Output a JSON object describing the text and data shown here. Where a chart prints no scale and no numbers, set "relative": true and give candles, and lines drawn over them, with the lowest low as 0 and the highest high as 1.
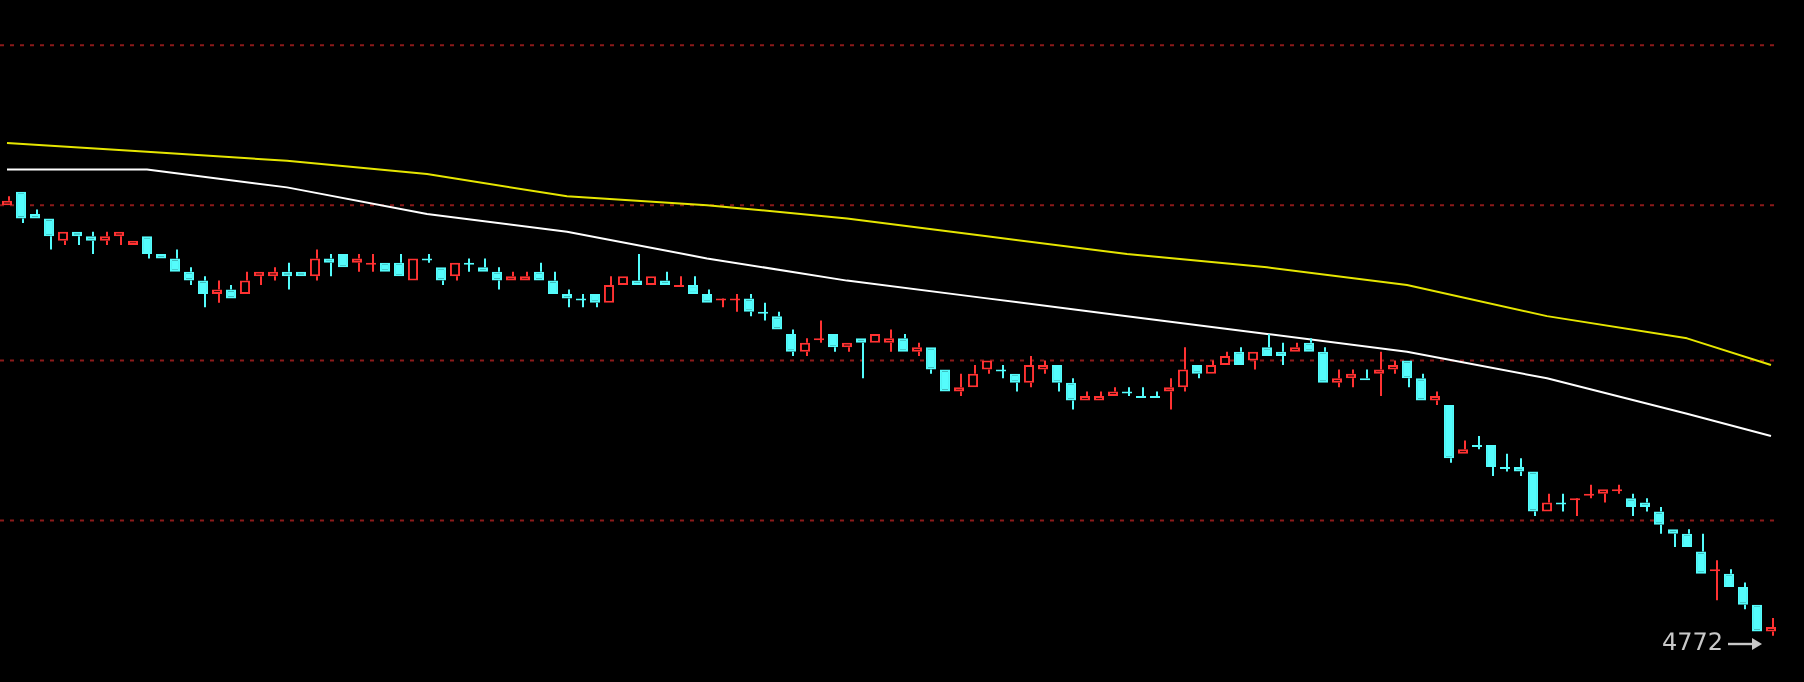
{
  "chart_data": {
    "type": "candlestick",
    "relative": true,
    "legend": false,
    "tick_labels": false,
    "categories": [
      null,
      null,
      null,
      null,
      null,
      null,
      null,
      null,
      null,
      null,
      null,
      null,
      null,
      null,
      null,
      null,
      null,
      null,
      null,
      null,
      null,
      null,
      null,
      null,
      null,
      null,
      null,
      null,
      null,
      null,
      null,
      null,
      null,
      null,
      null,
      null,
      null,
      null,
      null,
      null,
      null,
      null,
      null,
      null,
      null,
      null,
      null,
      null,
      null,
      null,
      null,
      null,
      null,
      null,
      null,
      null,
      null,
      null,
      null,
      null,
      null,
      null,
      null,
      null,
      null,
      null,
      null,
      null,
      null,
      null,
      null,
      null,
      null,
      null,
      null,
      null,
      null,
      null,
      null,
      null,
      null,
      null,
      null,
      null,
      null,
      null,
      null,
      null,
      null,
      null,
      null,
      null,
      null,
      null,
      null,
      null,
      null,
      null,
      null,
      null,
      null,
      null,
      null,
      null,
      null,
      null,
      null,
      null,
      null,
      null,
      null,
      null,
      null,
      null,
      null,
      null,
      null,
      null,
      null,
      null,
      null,
      null,
      null,
      null,
      null,
      null,
      null
    ],
    "ohlc": [
      [
        0.97,
        0.99,
        0.97,
        0.98
      ],
      [
        1.0,
        1.0,
        0.93,
        0.94
      ],
      [
        0.95,
        0.96,
        0.94,
        0.94
      ],
      [
        0.94,
        0.94,
        0.87,
        0.9
      ],
      [
        0.89,
        0.91,
        0.88,
        0.91
      ],
      [
        0.91,
        0.91,
        0.88,
        0.9
      ],
      [
        0.9,
        0.91,
        0.86,
        0.89
      ],
      [
        0.89,
        0.91,
        0.88,
        0.9
      ],
      [
        0.9,
        0.91,
        0.88,
        0.91
      ],
      [
        0.88,
        0.89,
        0.88,
        0.89
      ],
      [
        0.9,
        0.9,
        0.85,
        0.86
      ],
      [
        0.86,
        0.86,
        0.85,
        0.85
      ],
      [
        0.85,
        0.87,
        0.82,
        0.82
      ],
      [
        0.82,
        0.83,
        0.79,
        0.8
      ],
      [
        0.8,
        0.81,
        0.74,
        0.77
      ],
      [
        0.77,
        0.8,
        0.75,
        0.78
      ],
      [
        0.78,
        0.79,
        0.76,
        0.76
      ],
      [
        0.77,
        0.82,
        0.77,
        0.8
      ],
      [
        0.81,
        0.82,
        0.79,
        0.82
      ],
      [
        0.81,
        0.83,
        0.8,
        0.82
      ],
      [
        0.82,
        0.84,
        0.78,
        0.81
      ],
      [
        0.82,
        0.82,
        0.81,
        0.81
      ],
      [
        0.81,
        0.87,
        0.8,
        0.85
      ],
      [
        0.85,
        0.86,
        0.81,
        0.84
      ],
      [
        0.86,
        0.86,
        0.83,
        0.83
      ],
      [
        0.84,
        0.86,
        0.82,
        0.85
      ],
      [
        0.84,
        0.86,
        0.82,
        0.84
      ],
      [
        0.84,
        0.84,
        0.82,
        0.82
      ],
      [
        0.84,
        0.86,
        0.81,
        0.81
      ],
      [
        0.8,
        0.85,
        0.8,
        0.85
      ],
      [
        0.85,
        0.86,
        0.84,
        0.85
      ],
      [
        0.83,
        0.83,
        0.79,
        0.8
      ],
      [
        0.81,
        0.84,
        0.8,
        0.84
      ],
      [
        0.84,
        0.85,
        0.82,
        0.84
      ],
      [
        0.83,
        0.85,
        0.82,
        0.82
      ],
      [
        0.82,
        0.83,
        0.78,
        0.8
      ],
      [
        0.8,
        0.82,
        0.8,
        0.81
      ],
      [
        0.8,
        0.82,
        0.8,
        0.81
      ],
      [
        0.82,
        0.84,
        0.8,
        0.8
      ],
      [
        0.8,
        0.82,
        0.77,
        0.77
      ],
      [
        0.77,
        0.78,
        0.74,
        0.76
      ],
      [
        0.76,
        0.77,
        0.74,
        0.76
      ],
      [
        0.77,
        0.77,
        0.74,
        0.75
      ],
      [
        0.75,
        0.81,
        0.75,
        0.79
      ],
      [
        0.79,
        0.81,
        0.79,
        0.81
      ],
      [
        0.8,
        0.86,
        0.79,
        0.79
      ],
      [
        0.79,
        0.81,
        0.79,
        0.81
      ],
      [
        0.8,
        0.82,
        0.79,
        0.79
      ],
      [
        0.79,
        0.81,
        0.79,
        0.79
      ],
      [
        0.79,
        0.81,
        0.77,
        0.77
      ],
      [
        0.77,
        0.78,
        0.75,
        0.75
      ],
      [
        0.76,
        0.76,
        0.74,
        0.76
      ],
      [
        0.76,
        0.77,
        0.73,
        0.76
      ],
      [
        0.76,
        0.77,
        0.72,
        0.73
      ],
      [
        0.73,
        0.75,
        0.71,
        0.73
      ],
      [
        0.72,
        0.73,
        0.69,
        0.69
      ],
      [
        0.68,
        0.69,
        0.63,
        0.64
      ],
      [
        0.64,
        0.67,
        0.63,
        0.66
      ],
      [
        0.67,
        0.71,
        0.66,
        0.67
      ],
      [
        0.68,
        0.68,
        0.64,
        0.65
      ],
      [
        0.65,
        0.66,
        0.64,
        0.66
      ],
      [
        0.67,
        0.67,
        0.58,
        0.66
      ],
      [
        0.66,
        0.68,
        0.66,
        0.68
      ],
      [
        0.66,
        0.69,
        0.64,
        0.67
      ],
      [
        0.67,
        0.68,
        0.64,
        0.64
      ],
      [
        0.64,
        0.66,
        0.63,
        0.65
      ],
      [
        0.65,
        0.65,
        0.59,
        0.6
      ],
      [
        0.6,
        0.6,
        0.55,
        0.55
      ],
      [
        0.55,
        0.59,
        0.54,
        0.56
      ],
      [
        0.56,
        0.61,
        0.56,
        0.59
      ],
      [
        0.6,
        0.62,
        0.59,
        0.62
      ],
      [
        0.6,
        0.61,
        0.58,
        0.6
      ],
      [
        0.59,
        0.59,
        0.55,
        0.57
      ],
      [
        0.57,
        0.63,
        0.56,
        0.61
      ],
      [
        0.6,
        0.62,
        0.59,
        0.61
      ],
      [
        0.61,
        0.61,
        0.55,
        0.57
      ],
      [
        0.57,
        0.58,
        0.51,
        0.53
      ],
      [
        0.53,
        0.55,
        0.53,
        0.54
      ],
      [
        0.53,
        0.55,
        0.53,
        0.54
      ],
      [
        0.54,
        0.56,
        0.54,
        0.55
      ],
      [
        0.55,
        0.56,
        0.54,
        0.55
      ],
      [
        0.54,
        0.56,
        0.54,
        0.54
      ],
      [
        0.54,
        0.55,
        0.54,
        0.54
      ],
      [
        0.55,
        0.58,
        0.51,
        0.56
      ],
      [
        0.56,
        0.65,
        0.55,
        0.6
      ],
      [
        0.61,
        0.61,
        0.58,
        0.59
      ],
      [
        0.59,
        0.62,
        0.59,
        0.61
      ],
      [
        0.61,
        0.64,
        0.61,
        0.63
      ],
      [
        0.64,
        0.65,
        0.61,
        0.61
      ],
      [
        0.62,
        0.64,
        0.6,
        0.64
      ],
      [
        0.65,
        0.68,
        0.63,
        0.63
      ],
      [
        0.64,
        0.66,
        0.61,
        0.63
      ],
      [
        0.64,
        0.66,
        0.64,
        0.65
      ],
      [
        0.66,
        0.67,
        0.64,
        0.64
      ],
      [
        0.64,
        0.65,
        0.57,
        0.57
      ],
      [
        0.57,
        0.6,
        0.56,
        0.58
      ],
      [
        0.58,
        0.6,
        0.56,
        0.59
      ],
      [
        0.58,
        0.6,
        0.58,
        0.58
      ],
      [
        0.59,
        0.64,
        0.54,
        0.6
      ],
      [
        0.6,
        0.62,
        0.59,
        0.61
      ],
      [
        0.62,
        0.62,
        0.56,
        0.58
      ],
      [
        0.58,
        0.59,
        0.53,
        0.53
      ],
      [
        0.53,
        0.55,
        0.52,
        0.54
      ],
      [
        0.52,
        0.52,
        0.39,
        0.4
      ],
      [
        0.41,
        0.44,
        0.41,
        0.42
      ],
      [
        0.43,
        0.45,
        0.42,
        0.43
      ],
      [
        0.43,
        0.43,
        0.36,
        0.38
      ],
      [
        0.38,
        0.41,
        0.37,
        0.38
      ],
      [
        0.38,
        0.4,
        0.36,
        0.37
      ],
      [
        0.37,
        0.37,
        0.27,
        0.28
      ],
      [
        0.28,
        0.32,
        0.28,
        0.3
      ],
      [
        0.3,
        0.32,
        0.28,
        0.3
      ],
      [
        0.31,
        0.31,
        0.27,
        0.31
      ],
      [
        0.32,
        0.34,
        0.31,
        0.32
      ],
      [
        0.32,
        0.33,
        0.3,
        0.33
      ],
      [
        0.33,
        0.34,
        0.32,
        0.33
      ],
      [
        0.31,
        0.32,
        0.27,
        0.29
      ],
      [
        0.3,
        0.31,
        0.28,
        0.29
      ],
      [
        0.28,
        0.29,
        0.23,
        0.25
      ],
      [
        0.24,
        0.24,
        0.2,
        0.23
      ],
      [
        0.23,
        0.24,
        0.2,
        0.2
      ],
      [
        0.19,
        0.23,
        0.14,
        0.14
      ],
      [
        0.15,
        0.17,
        0.08,
        0.15
      ],
      [
        0.14,
        0.15,
        0.11,
        0.11
      ],
      [
        0.11,
        0.12,
        0.06,
        0.07
      ],
      [
        0.07,
        0.07,
        0.01,
        0.01
      ],
      [
        0.01,
        0.04,
        0.0,
        0.02
      ]
    ],
    "colors": [
      "#ff3232",
      "#54fcfc",
      "#54fcfc",
      "#54fcfc",
      "#ff3232",
      "#54fcfc",
      "#54fcfc",
      "#ff3232",
      "#ff3232",
      "#ff3232",
      "#54fcfc",
      "#54fcfc",
      "#54fcfc",
      "#54fcfc",
      "#54fcfc",
      "#ff3232",
      "#54fcfc",
      "#ff3232",
      "#ff3232",
      "#ff3232",
      "#54fcfc",
      "#54fcfc",
      "#ff3232",
      "#54fcfc",
      "#54fcfc",
      "#ff3232",
      "#ff3232",
      "#54fcfc",
      "#54fcfc",
      "#ff3232",
      "#54fcfc",
      "#54fcfc",
      "#ff3232",
      "#54fcfc",
      "#54fcfc",
      "#54fcfc",
      "#ff3232",
      "#ff3232",
      "#54fcfc",
      "#54fcfc",
      "#54fcfc",
      "#54fcfc",
      "#54fcfc",
      "#ff3232",
      "#ff3232",
      "#54fcfc",
      "#ff3232",
      "#54fcfc",
      "#ff3232",
      "#54fcfc",
      "#54fcfc",
      "#ff3232",
      "#ff3232",
      "#54fcfc",
      "#54fcfc",
      "#54fcfc",
      "#54fcfc",
      "#ff3232",
      "#ff3232",
      "#54fcfc",
      "#ff3232",
      "#54fcfc",
      "#ff3232",
      "#ff3232",
      "#54fcfc",
      "#ff3232",
      "#54fcfc",
      "#54fcfc",
      "#ff3232",
      "#ff3232",
      "#ff3232",
      "#54fcfc",
      "#54fcfc",
      "#ff3232",
      "#ff3232",
      "#54fcfc",
      "#54fcfc",
      "#ff3232",
      "#ff3232",
      "#ff3232",
      "#54fcfc",
      "#54fcfc",
      "#54fcfc",
      "#ff3232",
      "#ff3232",
      "#54fcfc",
      "#ff3232",
      "#ff3232",
      "#54fcfc",
      "#ff3232",
      "#54fcfc",
      "#54fcfc",
      "#ff3232",
      "#54fcfc",
      "#54fcfc",
      "#ff3232",
      "#ff3232",
      "#54fcfc",
      "#ff3232",
      "#ff3232",
      "#54fcfc",
      "#54fcfc",
      "#ff3232",
      "#54fcfc",
      "#ff3232",
      "#54fcfc",
      "#54fcfc",
      "#54fcfc",
      "#54fcfc",
      "#54fcfc",
      "#ff3232",
      "#54fcfc",
      "#ff3232",
      "#ff3232",
      "#ff3232",
      "#ff3232",
      "#54fcfc",
      "#54fcfc",
      "#54fcfc",
      "#54fcfc",
      "#54fcfc",
      "#54fcfc",
      "#ff3232",
      "#54fcfc",
      "#54fcfc",
      "#54fcfc",
      "#ff3232"
    ],
    "series": [
      {
        "type": "line",
        "color": "#e6e600",
        "values": [
          1.11,
          null,
          null,
          null,
          null,
          null,
          null,
          null,
          null,
          null,
          1.09,
          null,
          null,
          null,
          null,
          null,
          null,
          null,
          null,
          null,
          1.07,
          null,
          null,
          null,
          null,
          null,
          null,
          null,
          null,
          null,
          1.04,
          null,
          null,
          null,
          null,
          null,
          null,
          null,
          null,
          null,
          0.99,
          null,
          null,
          null,
          null,
          null,
          null,
          null,
          null,
          null,
          0.97,
          null,
          null,
          null,
          null,
          null,
          null,
          null,
          null,
          null,
          0.94,
          null,
          null,
          null,
          null,
          null,
          null,
          null,
          null,
          null,
          0.9,
          null,
          null,
          null,
          null,
          null,
          null,
          null,
          null,
          null,
          0.86,
          null,
          null,
          null,
          null,
          null,
          null,
          null,
          null,
          null,
          0.83,
          null,
          null,
          null,
          null,
          null,
          null,
          null,
          null,
          null,
          0.79,
          null,
          null,
          null,
          null,
          null,
          null,
          null,
          null,
          null,
          0.72,
          null,
          null,
          null,
          null,
          null,
          null,
          null,
          null,
          null,
          0.67,
          null,
          null,
          null,
          null,
          null,
          0.61
        ]
      },
      {
        "type": "line",
        "color": "#ffffff",
        "values": [
          1.05,
          null,
          null,
          null,
          null,
          null,
          null,
          null,
          null,
          null,
          1.05,
          null,
          null,
          null,
          null,
          null,
          null,
          null,
          null,
          null,
          1.01,
          null,
          null,
          null,
          null,
          null,
          null,
          null,
          null,
          null,
          0.95,
          null,
          null,
          null,
          null,
          null,
          null,
          null,
          null,
          null,
          0.91,
          null,
          null,
          null,
          null,
          null,
          null,
          null,
          null,
          null,
          0.85,
          null,
          null,
          null,
          null,
          null,
          null,
          null,
          null,
          null,
          0.8,
          null,
          null,
          null,
          null,
          null,
          null,
          null,
          null,
          null,
          0.76,
          null,
          null,
          null,
          null,
          null,
          null,
          null,
          null,
          null,
          0.72,
          null,
          null,
          null,
          null,
          null,
          null,
          null,
          null,
          null,
          0.68,
          null,
          null,
          null,
          null,
          null,
          null,
          null,
          null,
          null,
          0.64,
          null,
          null,
          null,
          null,
          null,
          null,
          null,
          null,
          null,
          0.58,
          null,
          null,
          null,
          null,
          null,
          null,
          null,
          null,
          null,
          0.5,
          null,
          null,
          null,
          null,
          null,
          0.45
        ]
      }
    ],
    "ref_lines": [
      {
        "axis": "y",
        "value": 1.33,
        "color": "#8b1a1a",
        "line_style": "dotted"
      },
      {
        "axis": "y",
        "value": 0.97,
        "color": "#8b1a1a",
        "line_style": "dotted"
      },
      {
        "axis": "y",
        "value": 0.62,
        "color": "#8b1a1a",
        "line_style": "dotted"
      },
      {
        "axis": "y",
        "value": 0.26,
        "color": "#8b1a1a",
        "line_style": "dotted"
      }
    ],
    "annotations": [
      "4772"
    ]
  }
}
